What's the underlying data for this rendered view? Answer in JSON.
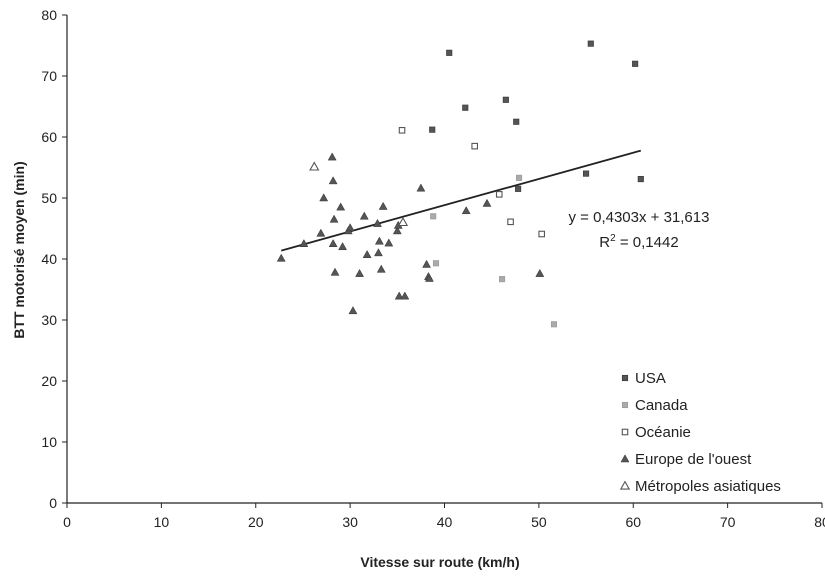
{
  "chart_data": {
    "type": "scatter",
    "title": "",
    "xlabel": "Vitesse sur route (km/h)",
    "ylabel": "BTT motorisé moyen (min)",
    "xlim": [
      0,
      80
    ],
    "ylim": [
      0,
      80
    ],
    "xticks": [
      0,
      10,
      20,
      30,
      40,
      50,
      60,
      70,
      80
    ],
    "yticks": [
      0,
      10,
      20,
      30,
      40,
      50,
      60,
      70,
      80
    ],
    "grid": false,
    "legend_position": "bottom-right",
    "series": [
      {
        "name": "USA",
        "marker": "filled-square",
        "color": "#555555",
        "points": [
          [
            40.5,
            73.8
          ],
          [
            55.5,
            75.3
          ],
          [
            60.2,
            72.0
          ],
          [
            42.2,
            64.8
          ],
          [
            46.5,
            66.1
          ],
          [
            47.6,
            62.5
          ],
          [
            38.7,
            61.2
          ],
          [
            47.8,
            51.5
          ],
          [
            55.0,
            54.0
          ],
          [
            60.8,
            53.1
          ]
        ]
      },
      {
        "name": "Canada",
        "marker": "light-square",
        "color": "#aaaaaa",
        "points": [
          [
            47.9,
            53.3
          ],
          [
            38.8,
            47.0
          ],
          [
            39.1,
            39.3
          ],
          [
            46.1,
            36.7
          ],
          [
            51.6,
            29.3
          ]
        ]
      },
      {
        "name": "Océanie",
        "marker": "open-square",
        "color": "#555555",
        "points": [
          [
            35.5,
            61.1
          ],
          [
            43.2,
            58.5
          ],
          [
            45.8,
            50.6
          ],
          [
            47.0,
            46.1
          ],
          [
            50.3,
            44.1
          ]
        ]
      },
      {
        "name": "Europe de l'ouest",
        "marker": "filled-triangle",
        "color": "#555555",
        "points": [
          [
            22.7,
            40.1
          ],
          [
            25.1,
            42.5
          ],
          [
            26.9,
            44.2
          ],
          [
            27.2,
            50.0
          ],
          [
            28.1,
            56.7
          ],
          [
            28.2,
            52.8
          ],
          [
            28.3,
            46.5
          ],
          [
            28.2,
            42.5
          ],
          [
            28.4,
            37.8
          ],
          [
            29.0,
            48.5
          ],
          [
            29.2,
            42.0
          ],
          [
            29.8,
            44.6
          ],
          [
            30.0,
            45.1
          ],
          [
            30.3,
            31.5
          ],
          [
            31.0,
            37.6
          ],
          [
            31.5,
            47.0
          ],
          [
            31.8,
            40.7
          ],
          [
            32.9,
            45.8
          ],
          [
            33.0,
            41.0
          ],
          [
            33.1,
            42.9
          ],
          [
            33.3,
            38.3
          ],
          [
            33.5,
            48.6
          ],
          [
            34.1,
            42.6
          ],
          [
            35.0,
            44.6
          ],
          [
            35.1,
            45.5
          ],
          [
            35.2,
            33.9
          ],
          [
            35.8,
            33.9
          ],
          [
            37.5,
            51.6
          ],
          [
            38.1,
            39.1
          ],
          [
            38.3,
            37.1
          ],
          [
            38.4,
            36.8
          ],
          [
            42.3,
            47.9
          ],
          [
            44.5,
            49.1
          ],
          [
            50.1,
            37.6
          ]
        ]
      },
      {
        "name": "Métropoles asiatiques",
        "marker": "open-triangle",
        "color": "#555555",
        "points": [
          [
            26.2,
            55.1
          ],
          [
            35.6,
            46.0
          ]
        ]
      }
    ],
    "trendline": {
      "x_range": [
        22.7,
        60.8
      ],
      "slope": 0.4303,
      "intercept": 31.613,
      "equation_label": "y = 0,4303x + 31,613",
      "r2_prefix": "R",
      "r2_sup": "2",
      "r2_value": " = 0,1442"
    }
  }
}
